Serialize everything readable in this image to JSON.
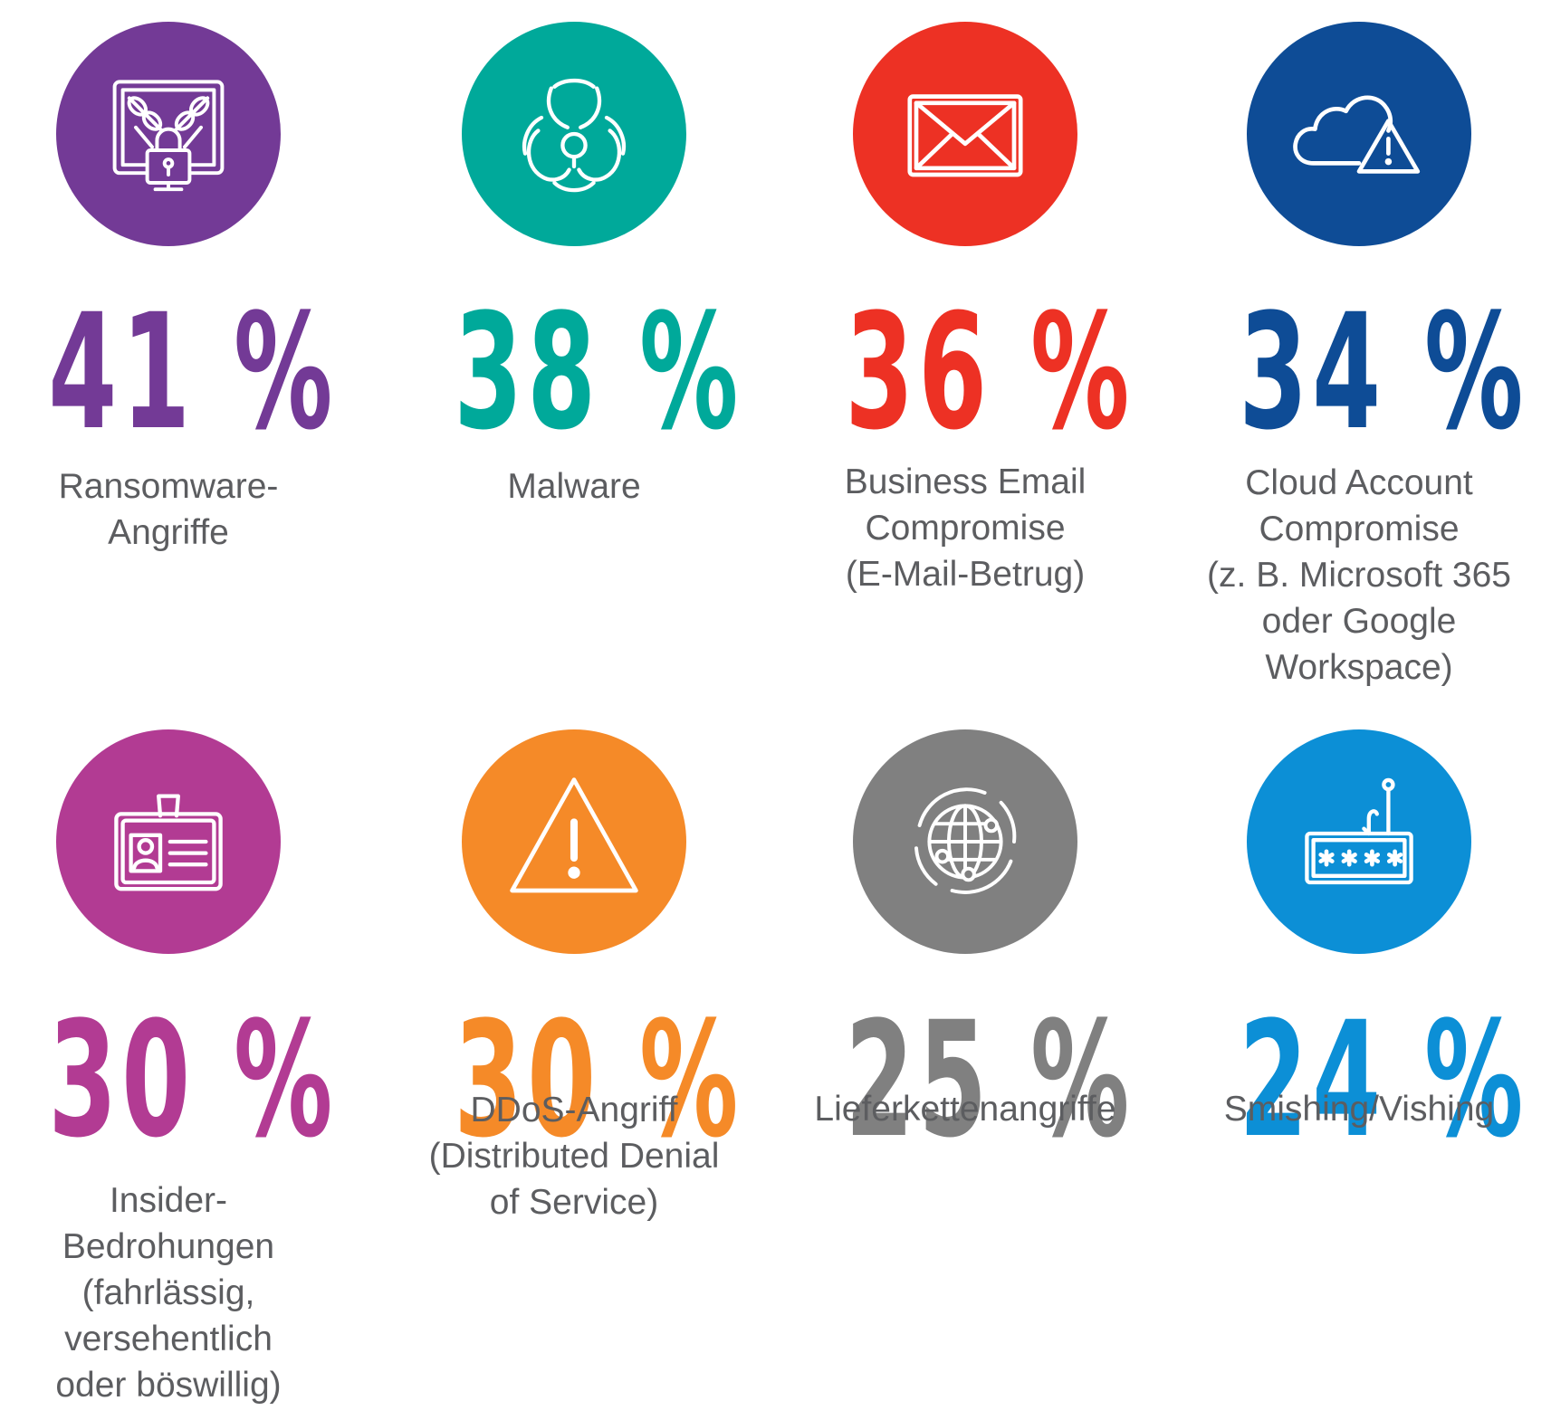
{
  "chart_data": {
    "type": "infographic",
    "unit": "%",
    "items": [
      {
        "value": 41,
        "display": "41 %",
        "label": "Ransomware-\nAngriffe",
        "color": "#733a96",
        "icon": "locked-monitor-chains-icon"
      },
      {
        "value": 38,
        "display": "38 %",
        "label": "Malware",
        "color": "#00a99a",
        "icon": "biohazard-icon"
      },
      {
        "value": 36,
        "display": "36 %",
        "label": "Business Email\nCompromise\n(E-Mail-Betrug)",
        "color": "#ed3124",
        "icon": "envelope-icon"
      },
      {
        "value": 34,
        "display": "34 %",
        "label": "Cloud Account\nCompromise\n(z. B. Microsoft 365\noder Google\nWorkspace)",
        "color": "#0e4c96",
        "icon": "cloud-warning-icon"
      },
      {
        "value": 30,
        "display": "30 %",
        "label": "Insider-\nBedrohungen\n(fahrlässig,\nversehentlich\noder böswillig)",
        "color": "#b23b93",
        "icon": "id-badge-icon"
      },
      {
        "value": 30,
        "display": "30 %",
        "label": "DDoS-Angriff\n(Distributed Denial\nof Service)",
        "color": "#f58a28",
        "icon": "warning-triangle-icon"
      },
      {
        "value": 25,
        "display": "25 %",
        "label": "Lieferkettenangriffe",
        "color": "#808080",
        "icon": "network-globe-icon"
      },
      {
        "value": 24,
        "display": "24 %",
        "label": "Smishing/Vishing",
        "color": "#0c8fd6",
        "icon": "phishing-password-icon"
      }
    ]
  }
}
